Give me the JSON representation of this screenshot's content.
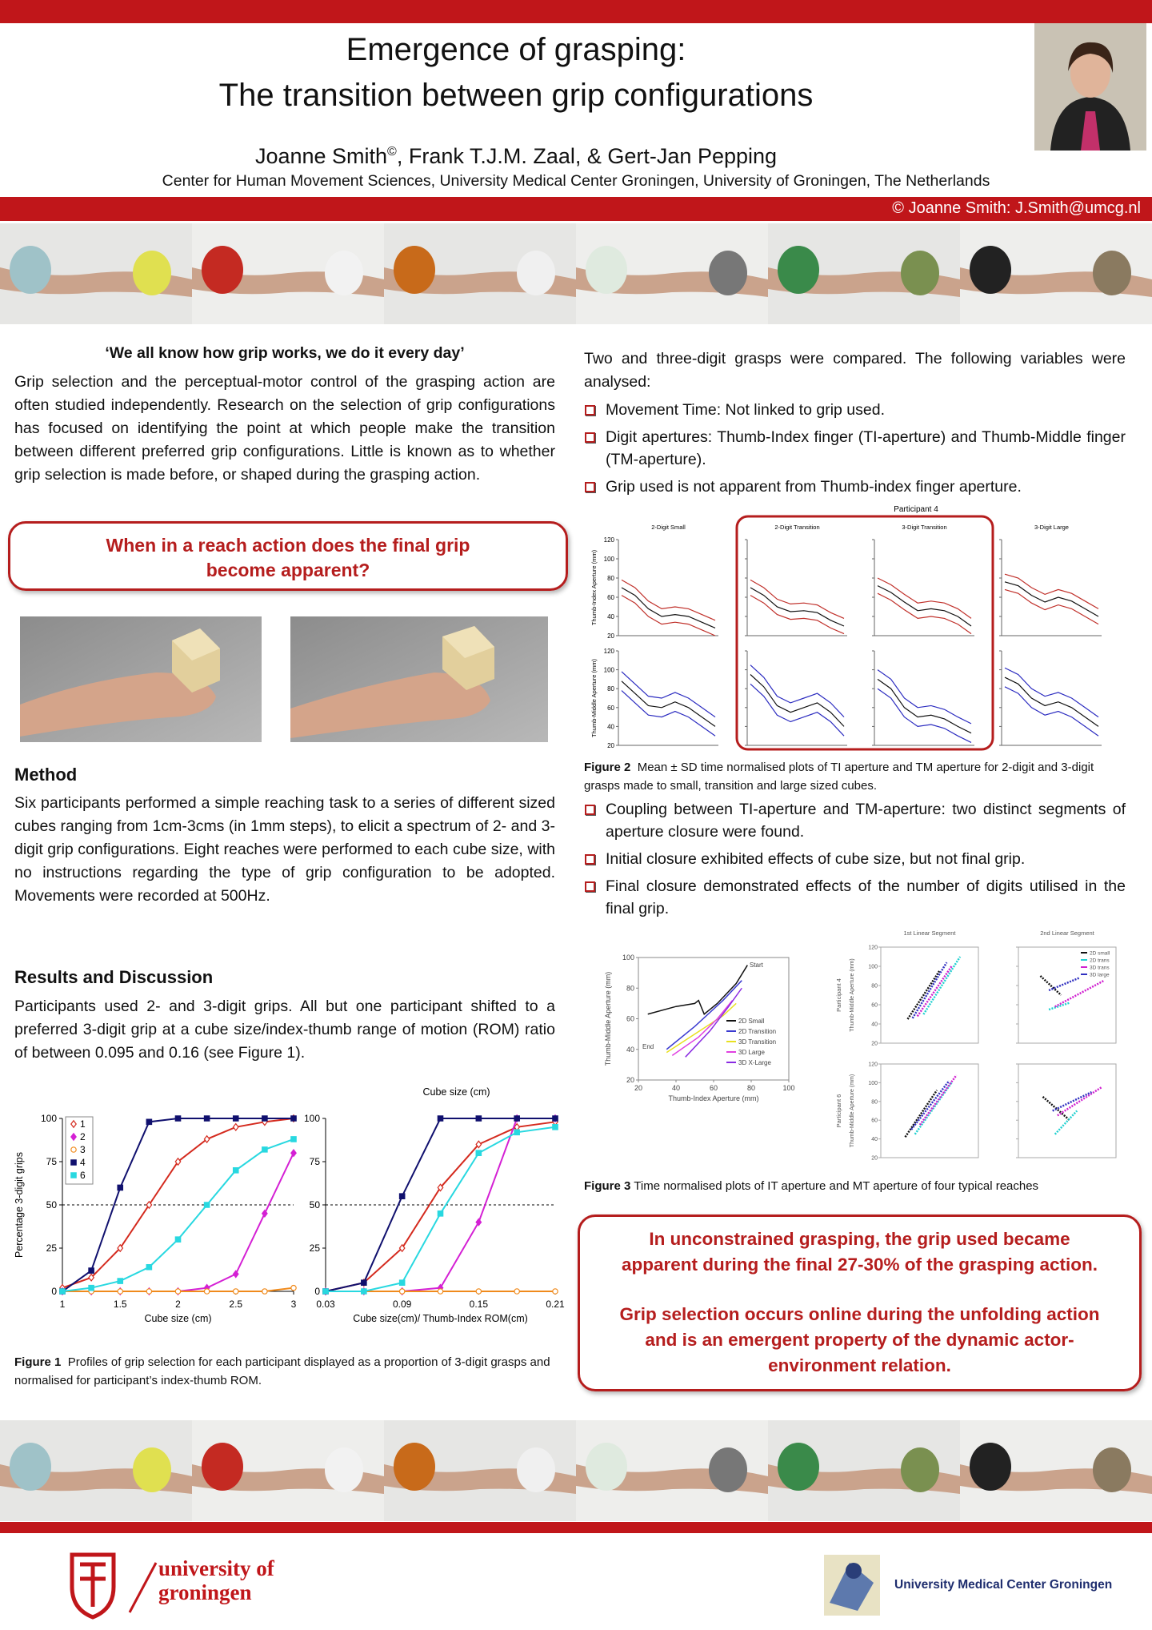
{
  "header": {
    "title_lines": [
      "Emergence of grasping:",
      "The transition between grip configurations"
    ],
    "author_first": "Joanne Smith",
    "author_mark": "©",
    "authors_rest": ", Frank T.J.M. Zaal, & Gert-Jan Pepping",
    "affiliation": "Center for Human Movement Sciences, University Medical Center Groningen, University of Groningen, The Netherlands",
    "contact": "© Joanne Smith: J.Smith@umcg.nl"
  },
  "left": {
    "quote": "‘We all know how grip works, we do it every day’",
    "intro": "Grip selection and the perceptual-motor control of the grasping action are often studied independently. Research on the selection of grip configurations has focused on identifying the point at which people make the transition between different preferred grip configurations. Little is known as to whether grip selection is made before, or shaped during the grasping action.",
    "question": "When in a reach action does the final grip become apparent?",
    "method_heading": "Method",
    "method_text": "Six participants performed a simple reaching task to a series of different sized cubes ranging from 1cm-3cms (in 1mm steps), to elicit a spectrum of  2- and 3-digit grip configurations. Eight reaches were performed to each cube size, with no instructions regarding the type of grip configuration to be adopted. Movements were recorded at 500Hz.",
    "results_heading": "Results and Discussion",
    "results_text": "Participants used 2- and 3-digit grips. All but one participant shifted to a preferred 3-digit grip at a cube size/index-thumb range of motion (ROM) ratio of between 0.095 and 0.16 (see Figure 1)."
  },
  "figure1": {
    "caption_label": "Figure 1",
    "caption": "Profiles of grip selection for each participant displayed as a proportion of 3-digit grasps and normalised for participant’s index-thumb ROM.",
    "charts": [
      {
        "type": "line",
        "xlabel": "Cube size (cm)",
        "ylabel": "Percentage 3-digit grips",
        "xlim": [
          1,
          3
        ],
        "ylim": [
          0,
          100
        ],
        "xticks": [
          1,
          1.5,
          2,
          2.5,
          3
        ],
        "yticks": [
          0,
          25,
          50,
          75,
          100
        ],
        "reference_line": 50,
        "x": [
          1,
          1.25,
          1.5,
          1.75,
          2,
          2.25,
          2.5,
          2.75,
          3
        ],
        "series": [
          {
            "name": "1",
            "color": "#d42a1e",
            "marker": "diamond-open",
            "values": [
              2,
              8,
              25,
              50,
              75,
              88,
              95,
              98,
              100
            ]
          },
          {
            "name": "2",
            "color": "#d420d4",
            "marker": "diamond",
            "values": [
              0,
              0,
              0,
              0,
              0,
              2,
              10,
              45,
              80
            ]
          },
          {
            "name": "3",
            "color": "#f08a1c",
            "marker": "circle-open",
            "values": [
              0,
              0,
              0,
              0,
              0,
              0,
              0,
              0,
              2
            ]
          },
          {
            "name": "4",
            "color": "#10106e",
            "marker": "square",
            "values": [
              0,
              12,
              60,
              98,
              100,
              100,
              100,
              100,
              100
            ]
          },
          {
            "name": "6",
            "color": "#28d8e0",
            "marker": "square",
            "values": [
              0,
              2,
              6,
              14,
              30,
              50,
              70,
              82,
              88
            ]
          }
        ]
      },
      {
        "type": "line",
        "title": "Cube size (cm)",
        "xlabel": "Cube size(cm)/ Thumb-Index ROM(cm)",
        "xlim": [
          0.03,
          0.21
        ],
        "ylim": [
          0,
          100
        ],
        "xticks": [
          0.03,
          0.09,
          0.15,
          0.21
        ],
        "yticks": [
          0,
          25,
          50,
          75,
          100
        ],
        "reference_line": 50,
        "x": [
          0.03,
          0.06,
          0.09,
          0.12,
          0.15,
          0.18,
          0.21
        ],
        "series": [
          {
            "color": "#d42a1e",
            "marker": "diamond-open",
            "values": [
              0,
              5,
              25,
              60,
              85,
              95,
              98
            ]
          },
          {
            "color": "#d420d4",
            "marker": "diamond",
            "values": [
              0,
              0,
              0,
              2,
              40,
              100,
              100
            ]
          },
          {
            "color": "#f08a1c",
            "marker": "circle-open",
            "values": [
              0,
              0,
              0,
              0,
              0,
              0,
              0
            ]
          },
          {
            "color": "#10106e",
            "marker": "square",
            "values": [
              0,
              5,
              55,
              100,
              100,
              100,
              100
            ]
          },
          {
            "color": "#28d8e0",
            "marker": "square",
            "values": [
              0,
              0,
              5,
              45,
              80,
              92,
              95
            ]
          }
        ]
      }
    ]
  },
  "right": {
    "intro": "Two and three-digit grasps were compared. The following variables were analysed:",
    "bullets": [
      "Movement Time: Not linked to grip used.",
      "Digit apertures: Thumb-Index finger (TI-aperture) and Thumb-Middle finger (TM-aperture).",
      "Grip used is not apparent from Thumb-index finger aperture."
    ],
    "bullets2": [
      "Coupling between TI-aperture and TM-aperture: two distinct segments of aperture closure were found.",
      "Initial closure exhibited effects of cube size, but not final grip.",
      "Final closure demonstrated effects of the number of digits utilised in the final grip."
    ],
    "conclusions": [
      "In unconstrained grasping, the grip used became apparent during the final 27-30% of the grasping action.",
      "Grip selection occurs online during the unfolding action and is an emergent property of the dynamic actor-environment relation."
    ]
  },
  "figure2": {
    "type": "line",
    "title": "Participant 4",
    "caption_label": "Figure 2",
    "caption": "Mean ± SD time normalised plots of TI aperture and TM aperture for 2-digit and 3-digit grasps made to small, transition and large sized cubes.",
    "ylabels": [
      "Thumb-Index Aperture (mm)",
      "Thumb-Middle Aperture (mm)"
    ],
    "ylim": [
      20,
      120
    ],
    "yticks": [
      20,
      40,
      60,
      80,
      100,
      120
    ],
    "ti_color": "#c0302a",
    "tm_color": "#2c2cc0",
    "mean_color": "#111111",
    "panels": [
      {
        "title": "2-Digit Small",
        "ti": [
          70,
          62,
          48,
          40,
          42,
          40,
          34,
          28
        ],
        "ti_sd": 8,
        "tm": [
          88,
          75,
          62,
          60,
          66,
          60,
          50,
          40
        ],
        "tm_sd": 10
      },
      {
        "title": "2-Digit Transition",
        "ti": [
          70,
          62,
          50,
          45,
          46,
          44,
          36,
          30
        ],
        "ti_sd": 8,
        "tm": [
          95,
          82,
          62,
          55,
          60,
          65,
          55,
          40
        ],
        "tm_sd": 10
      },
      {
        "title": "3-Digit Transition",
        "ti": [
          72,
          65,
          55,
          46,
          48,
          46,
          40,
          30
        ],
        "ti_sd": 8,
        "tm": [
          90,
          80,
          60,
          50,
          52,
          48,
          40,
          33
        ],
        "tm_sd": 10
      },
      {
        "title": "3-Digit Large",
        "ti": [
          76,
          72,
          62,
          55,
          60,
          56,
          48,
          40
        ],
        "ti_sd": 8,
        "tm": [
          92,
          85,
          70,
          62,
          66,
          60,
          50,
          40
        ],
        "tm_sd": 10
      }
    ]
  },
  "figure3": {
    "caption_label": "Figure 3",
    "caption": "Time normalised plots of IT aperture and MT aperture of four typical reaches",
    "left": {
      "type": "line",
      "xlabel": "Thumb-Index Aperture (mm)",
      "ylabel": "Thumb-Middle Aperture (mm)",
      "xlim": [
        20,
        100
      ],
      "ylim": [
        20,
        100
      ],
      "xticks": [
        20,
        40,
        60,
        80,
        100
      ],
      "yticks": [
        20,
        40,
        60,
        80,
        100
      ],
      "annotations": [
        "Start",
        "End"
      ],
      "series": [
        {
          "name": "2D Small",
          "color": "#111111",
          "x": [
            25,
            40,
            50,
            52,
            55,
            62,
            72,
            78
          ],
          "y": [
            63,
            68,
            70,
            72,
            63,
            70,
            83,
            95
          ]
        },
        {
          "name": "2D Transition",
          "color": "#3a3ad0",
          "x": [
            35,
            50,
            65,
            75
          ],
          "y": [
            40,
            55,
            72,
            85
          ]
        },
        {
          "name": "3D Transition",
          "color": "#e8e020",
          "x": [
            35,
            50,
            65,
            72
          ],
          "y": [
            38,
            50,
            62,
            70
          ]
        },
        {
          "name": "3D Large",
          "color": "#e040e0",
          "x": [
            38,
            52,
            62,
            70
          ],
          "y": [
            36,
            48,
            60,
            72
          ]
        },
        {
          "name": "3D X-Large",
          "color": "#8a2be2",
          "x": [
            45,
            58,
            68,
            75
          ],
          "y": [
            35,
            52,
            68,
            80
          ]
        }
      ]
    },
    "right": {
      "type": "line",
      "titles": [
        "1st Linear Segment",
        "2nd Linear Segment"
      ],
      "rows": [
        "Participant 4",
        "Participant 6"
      ],
      "ylabel": "Thumb-Middle Aperture (mm)",
      "xlim": [
        20,
        100
      ],
      "ylim": [
        20,
        120
      ],
      "yticks": [
        20,
        40,
        60,
        80,
        100,
        120
      ],
      "series": [
        {
          "name": "2D small",
          "color": "#111111"
        },
        {
          "name": "2D trans",
          "color": "#20d0d0"
        },
        {
          "name": "3D trans",
          "color": "#d020d0"
        },
        {
          "name": "3D large",
          "color": "#3030c0"
        }
      ],
      "panels": [
        {
          "segments": [
            [
              42,
              45,
              68,
              95
            ],
            [
              55,
              50,
              85,
              110
            ],
            [
              50,
              48,
              78,
              100
            ],
            [
              46,
              46,
              74,
              104
            ]
          ]
        },
        {
          "segments": [
            [
              38,
              90,
              55,
              70
            ],
            [
              45,
              55,
              62,
              62
            ],
            [
              50,
              58,
              90,
              85
            ],
            [
              45,
              75,
              70,
              88
            ]
          ]
        },
        {
          "segments": [
            [
              40,
              42,
              66,
              92
            ],
            [
              48,
              45,
              78,
              100
            ],
            [
              52,
              55,
              82,
              108
            ],
            [
              45,
              50,
              76,
              102
            ]
          ]
        },
        {
          "segments": [
            [
              40,
              85,
              62,
              60
            ],
            [
              50,
              45,
              68,
              70
            ],
            [
              52,
              65,
              88,
              95
            ],
            [
              48,
              70,
              80,
              90
            ]
          ]
        }
      ]
    }
  },
  "footer": {
    "rug_line1": "university of",
    "rug_line2": "groningen",
    "umcg": "University Medical Center Groningen"
  }
}
